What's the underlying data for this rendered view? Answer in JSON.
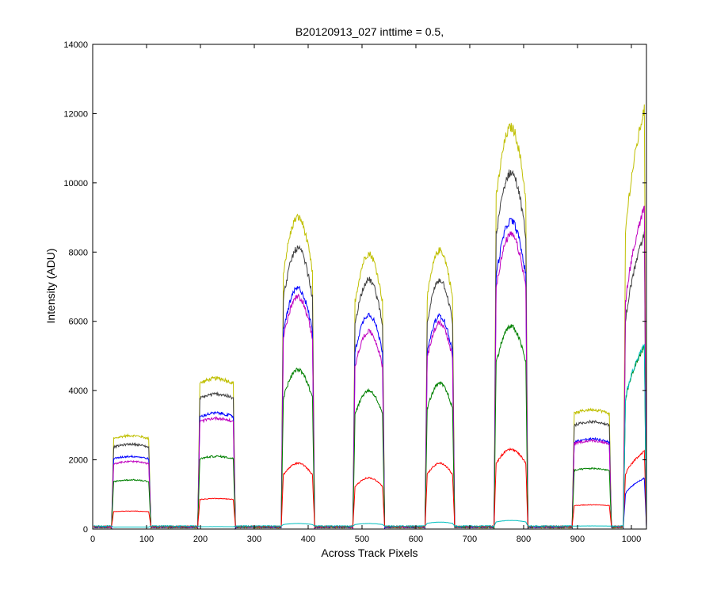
{
  "chart_data": {
    "type": "line",
    "title": "B20120913_027 inttime = 0.5,",
    "xlabel": "Across Track Pixels",
    "ylabel": "Intensity (ADU)",
    "xlim": [
      0,
      1028
    ],
    "ylim": [
      0,
      14000
    ],
    "xticks": [
      0,
      100,
      200,
      300,
      400,
      500,
      600,
      700,
      800,
      900,
      1000
    ],
    "yticks": [
      0,
      2000,
      4000,
      6000,
      8000,
      10000,
      12000,
      14000
    ],
    "grid": false,
    "legend": "none",
    "bands": [
      {
        "start": 35,
        "end": 108
      },
      {
        "start": 195,
        "end": 265
      },
      {
        "start": 350,
        "end": 412
      },
      {
        "start": 483,
        "end": 542
      },
      {
        "start": 617,
        "end": 672
      },
      {
        "start": 745,
        "end": 808
      },
      {
        "start": 890,
        "end": 963
      },
      {
        "start": 985,
        "end": 1028
      }
    ],
    "series": [
      {
        "color": "#bfbf00",
        "values": [
          2700,
          4350,
          9000,
          7950,
          8050,
          11600,
          3450,
          12400
        ]
      },
      {
        "color": "#404040",
        "values": [
          2450,
          3900,
          8100,
          7200,
          7200,
          10300,
          3100,
          8700
        ]
      },
      {
        "color": "#0000ff",
        "values": [
          2100,
          3350,
          6950,
          6200,
          6150,
          8900,
          2600,
          1500
        ]
      },
      {
        "color": "#bf00bf",
        "values": [
          1950,
          3200,
          6700,
          5700,
          5950,
          8500,
          2550,
          9500
        ]
      },
      {
        "color": "#008000",
        "values": [
          1420,
          2100,
          4600,
          4000,
          4200,
          5850,
          1750,
          5400
        ]
      },
      {
        "color": "#ff0000",
        "values": [
          520,
          880,
          1900,
          1480,
          1900,
          2300,
          700,
          2300
        ]
      },
      {
        "color": "#00bfbf",
        "values": [
          60,
          70,
          160,
          160,
          200,
          250,
          90,
          5450
        ]
      }
    ],
    "band_shapes": [
      "flat",
      "flat",
      "peaked",
      "peaked",
      "peaked",
      "peaked",
      "flat",
      "rising"
    ]
  }
}
